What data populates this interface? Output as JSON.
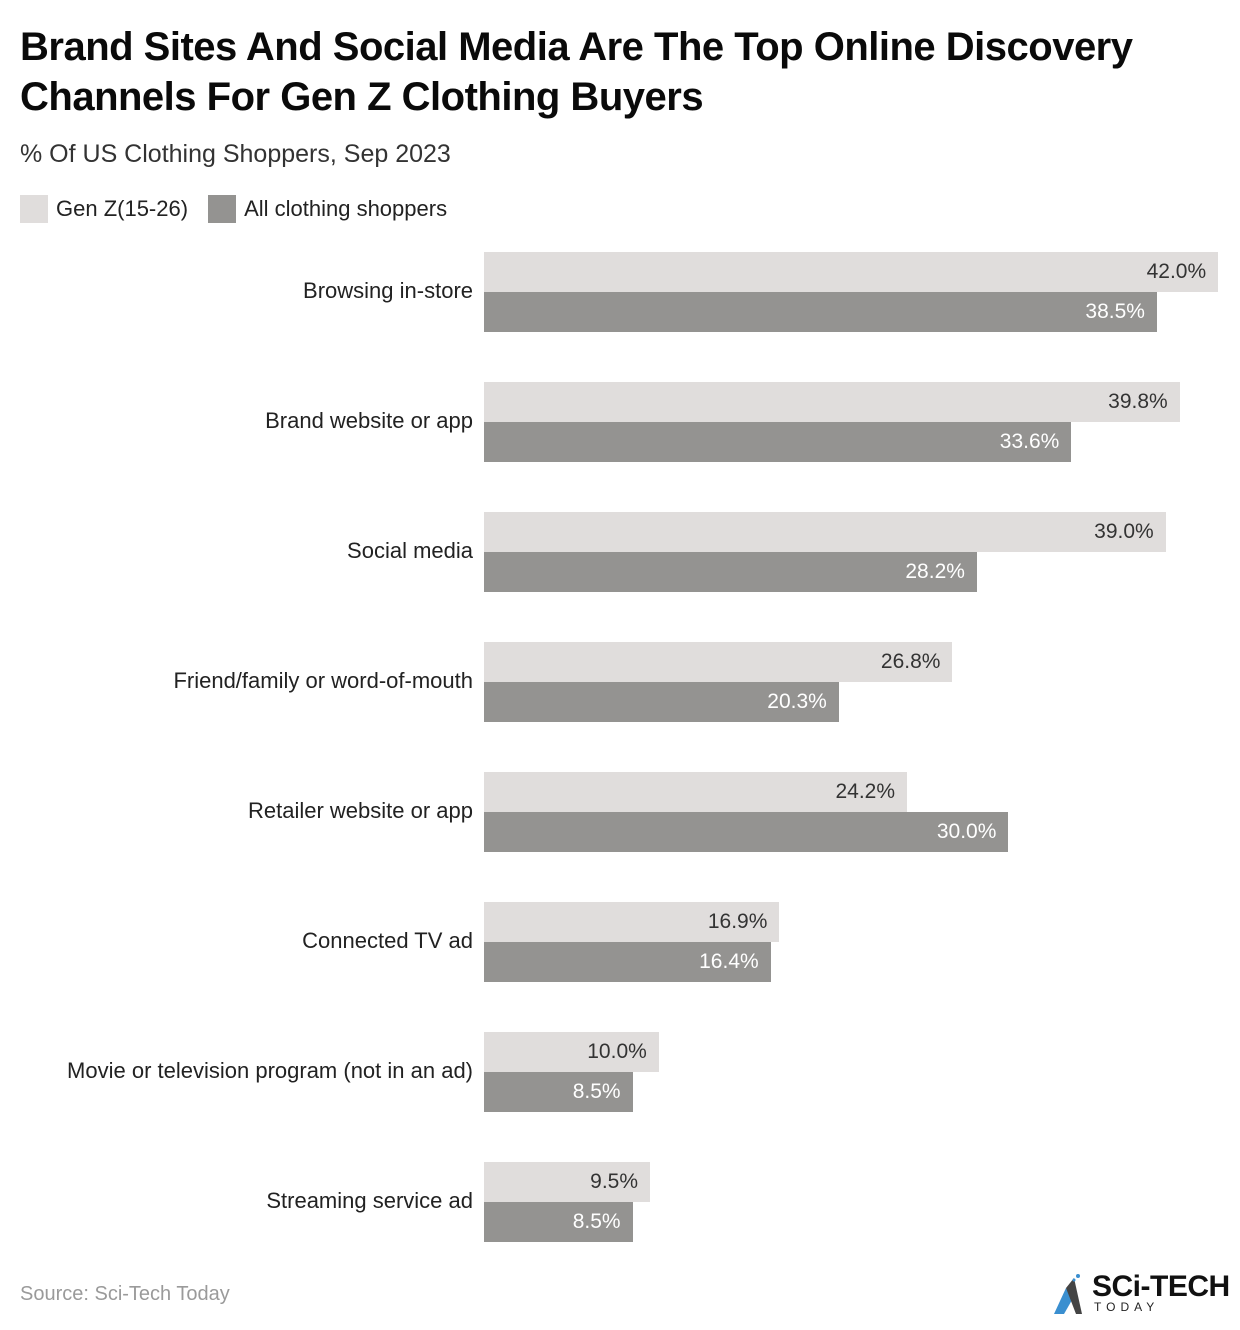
{
  "header": {
    "title": "Brand Sites And Social Media Are The Top Online Discovery Channels For Gen Z Clothing Buyers",
    "subtitle": "% Of US Clothing Shoppers, Sep 2023"
  },
  "legend": [
    {
      "label": "Gen Z(15-26)",
      "color": "#e0dddc"
    },
    {
      "label": "All clothing shoppers",
      "color": "#949391"
    }
  ],
  "footer": {
    "source": "Source: Sci-Tech Today",
    "logo_main": "SCi-TECH",
    "logo_sub": "TODAY"
  },
  "chart_data": {
    "type": "bar",
    "orientation": "horizontal",
    "title": "Brand Sites And Social Media Are The Top Online Discovery Channels For Gen Z Clothing Buyers",
    "subtitle": "% Of US Clothing Shoppers, Sep 2023",
    "xlabel": "",
    "ylabel": "",
    "legend_position": "top-left",
    "grid": false,
    "categories": [
      "Browsing in-store",
      "Brand website or app",
      "Social media",
      "Friend/family or word-of-mouth",
      "Retailer website or app",
      "Connected TV ad",
      "Movie or television program (not in an ad)",
      "Streaming service ad"
    ],
    "series": [
      {
        "name": "Gen Z(15-26)",
        "color": "#e0dddc",
        "values": [
          42.0,
          39.8,
          39.0,
          26.8,
          24.2,
          16.9,
          10.0,
          9.5
        ],
        "labels": [
          "42.0%",
          "39.8%",
          "39.0%",
          "26.8%",
          "24.2%",
          "16.9%",
          "10.0%",
          "9.5%"
        ]
      },
      {
        "name": "All clothing shoppers",
        "color": "#949391",
        "values": [
          38.5,
          33.6,
          28.2,
          20.3,
          30.0,
          16.4,
          8.5,
          8.5
        ],
        "labels": [
          "38.5%",
          "33.6%",
          "28.2%",
          "20.3%",
          "30.0%",
          "16.4%",
          "8.5%",
          "8.5%"
        ]
      }
    ],
    "source": "Sci-Tech Today"
  }
}
